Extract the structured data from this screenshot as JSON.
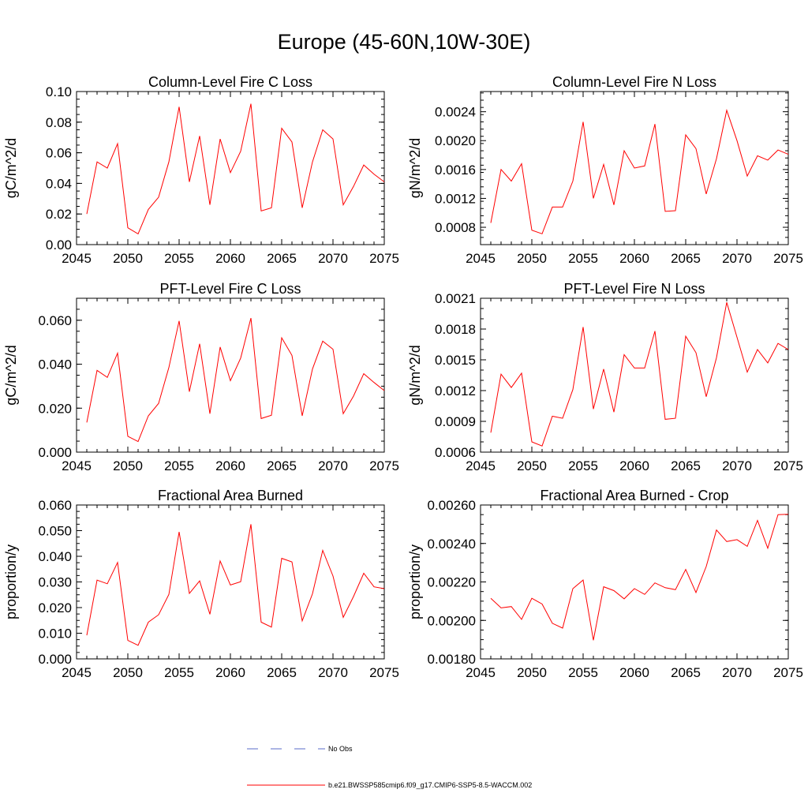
{
  "title": "Europe (45-60N,10W-30E)",
  "chart_data": [
    {
      "type": "line",
      "title": "Column-Level Fire C Loss",
      "ylabel": "gC/m^2/d",
      "xlim": [
        2045,
        2075
      ],
      "ylim": [
        0.0,
        0.1
      ],
      "xticks": [
        2045,
        2050,
        2055,
        2060,
        2065,
        2070,
        2075
      ],
      "xtick_labels": [
        "2045",
        "2050",
        "2055",
        "2060",
        "2065",
        "2070",
        "2075"
      ],
      "yticks": [
        0.0,
        0.02,
        0.04,
        0.06,
        0.08,
        0.1
      ],
      "ytick_labels": [
        "0.00",
        "0.02",
        "0.04",
        "0.06",
        "0.08",
        "0.10"
      ],
      "yminor_step": 0.005,
      "series": [
        {
          "name": "b.e21.BWSSP585cmip6.f09_g17.CMIP6-SSP5-8.5-WACCM.002",
          "color": "#ff0000",
          "x": [
            2046,
            2047,
            2048,
            2049,
            2050,
            2051,
            2052,
            2053,
            2054,
            2055,
            2056,
            2057,
            2058,
            2059,
            2060,
            2061,
            2062,
            2063,
            2064,
            2065,
            2066,
            2067,
            2068,
            2069,
            2070,
            2071,
            2072,
            2073,
            2074,
            2075
          ],
          "values": [
            0.02,
            0.054,
            0.05,
            0.066,
            0.011,
            0.007,
            0.023,
            0.031,
            0.054,
            0.09,
            0.041,
            0.071,
            0.026,
            0.069,
            0.047,
            0.061,
            0.092,
            0.022,
            0.024,
            0.076,
            0.067,
            0.024,
            0.054,
            0.075,
            0.069,
            0.026,
            0.038,
            0.052,
            0.046,
            0.041
          ]
        }
      ]
    },
    {
      "type": "line",
      "title": "Column-Level Fire N Loss",
      "ylabel": "gN/m^2/d",
      "xlim": [
        2045,
        2075
      ],
      "ylim": [
        0.00056,
        0.00268
      ],
      "xticks": [
        2045,
        2050,
        2055,
        2060,
        2065,
        2070,
        2075
      ],
      "xtick_labels": [
        "2045",
        "2050",
        "2055",
        "2060",
        "2065",
        "2070",
        "2075"
      ],
      "yticks": [
        0.0008,
        0.0012,
        0.0016,
        0.002,
        0.0024
      ],
      "ytick_labels": [
        "0.0008",
        "0.0012",
        "0.0016",
        "0.0020",
        "0.0024"
      ],
      "yminor_step": 0.0001,
      "series": [
        {
          "name": "b.e21.BWSSP585cmip6.f09_g17.CMIP6-SSP5-8.5-WACCM.002",
          "color": "#ff0000",
          "x": [
            2046,
            2047,
            2048,
            2049,
            2050,
            2051,
            2052,
            2053,
            2054,
            2055,
            2056,
            2057,
            2058,
            2059,
            2060,
            2061,
            2062,
            2063,
            2064,
            2065,
            2066,
            2067,
            2068,
            2069,
            2070,
            2071,
            2072,
            2073,
            2074,
            2075
          ],
          "values": [
            0.00086,
            0.0016,
            0.00144,
            0.00168,
            0.00076,
            0.00071,
            0.00108,
            0.00108,
            0.00144,
            0.00226,
            0.0012,
            0.00167,
            0.00111,
            0.00186,
            0.00162,
            0.00165,
            0.00223,
            0.00102,
            0.00103,
            0.00208,
            0.00189,
            0.00126,
            0.00175,
            0.00242,
            0.002,
            0.00151,
            0.00179,
            0.00173,
            0.00187,
            0.00181
          ]
        }
      ]
    },
    {
      "type": "line",
      "title": "PFT-Level Fire C Loss",
      "ylabel": "gC/m^2/d",
      "xlim": [
        2045,
        2075
      ],
      "ylim": [
        0.0,
        0.07
      ],
      "xticks": [
        2045,
        2050,
        2055,
        2060,
        2065,
        2070,
        2075
      ],
      "xtick_labels": [
        "2045",
        "2050",
        "2055",
        "2060",
        "2065",
        "2070",
        "2075"
      ],
      "yticks": [
        0.0,
        0.02,
        0.04,
        0.06
      ],
      "ytick_labels": [
        "0.000",
        "0.020",
        "0.040",
        "0.060"
      ],
      "yminor_step": 0.005,
      "series": [
        {
          "name": "b.e21.BWSSP585cmip6.f09_g17.CMIP6-SSP5-8.5-WACCM.002",
          "color": "#ff0000",
          "x": [
            2046,
            2047,
            2048,
            2049,
            2050,
            2051,
            2052,
            2053,
            2054,
            2055,
            2056,
            2057,
            2058,
            2059,
            2060,
            2061,
            2062,
            2063,
            2064,
            2065,
            2066,
            2067,
            2068,
            2069,
            2070,
            2071,
            2072,
            2073,
            2074,
            2075
          ],
          "values": [
            0.0135,
            0.0372,
            0.034,
            0.045,
            0.0072,
            0.0048,
            0.0165,
            0.0222,
            0.0385,
            0.0597,
            0.0275,
            0.0493,
            0.0175,
            0.0478,
            0.0325,
            0.0428,
            0.061,
            0.0153,
            0.0168,
            0.052,
            0.044,
            0.0165,
            0.0378,
            0.0505,
            0.0468,
            0.0175,
            0.0255,
            0.0357,
            0.0317,
            0.028
          ]
        }
      ]
    },
    {
      "type": "line",
      "title": "PFT-Level Fire N Loss",
      "ylabel": "gN/m^2/d",
      "xlim": [
        2045,
        2075
      ],
      "ylim": [
        0.0006,
        0.0021
      ],
      "xticks": [
        2045,
        2050,
        2055,
        2060,
        2065,
        2070,
        2075
      ],
      "xtick_labels": [
        "2045",
        "2050",
        "2055",
        "2060",
        "2065",
        "2070",
        "2075"
      ],
      "yticks": [
        0.0006,
        0.0009,
        0.0012,
        0.0015,
        0.0018,
        0.0021
      ],
      "ytick_labels": [
        "0.0006",
        "0.0009",
        "0.0012",
        "0.0015",
        "0.0018",
        "0.0021"
      ],
      "yminor_step": 0.0001,
      "series": [
        {
          "name": "b.e21.BWSSP585cmip6.f09_g17.CMIP6-SSP5-8.5-WACCM.002",
          "color": "#ff0000",
          "x": [
            2046,
            2047,
            2048,
            2049,
            2050,
            2051,
            2052,
            2053,
            2054,
            2055,
            2056,
            2057,
            2058,
            2059,
            2060,
            2061,
            2062,
            2063,
            2064,
            2065,
            2066,
            2067,
            2068,
            2069,
            2070,
            2071,
            2072,
            2073,
            2074,
            2075
          ],
          "values": [
            0.00079,
            0.00136,
            0.00123,
            0.00137,
            0.0007,
            0.00066,
            0.00095,
            0.00093,
            0.00121,
            0.00182,
            0.00102,
            0.00141,
            0.00099,
            0.00155,
            0.00142,
            0.00142,
            0.00178,
            0.00092,
            0.00093,
            0.00173,
            0.00157,
            0.00114,
            0.00152,
            0.00206,
            0.00172,
            0.00138,
            0.0016,
            0.00147,
            0.00166,
            0.0016
          ]
        }
      ]
    },
    {
      "type": "line",
      "title": "Fractional Area Burned",
      "ylabel": "proportion/y",
      "xlim": [
        2045,
        2075
      ],
      "ylim": [
        0.0,
        0.06
      ],
      "xticks": [
        2045,
        2050,
        2055,
        2060,
        2065,
        2070,
        2075
      ],
      "xtick_labels": [
        "2045",
        "2050",
        "2055",
        "2060",
        "2065",
        "2070",
        "2075"
      ],
      "yticks": [
        0.0,
        0.01,
        0.02,
        0.03,
        0.04,
        0.05,
        0.06
      ],
      "ytick_labels": [
        "0.000",
        "0.010",
        "0.020",
        "0.030",
        "0.040",
        "0.050",
        "0.060"
      ],
      "yminor_step": 0.0025,
      "series": [
        {
          "name": "b.e21.BWSSP585cmip6.f09_g17.CMIP6-SSP5-8.5-WACCM.002",
          "color": "#ff0000",
          "x": [
            2046,
            2047,
            2048,
            2049,
            2050,
            2051,
            2052,
            2053,
            2054,
            2055,
            2056,
            2057,
            2058,
            2059,
            2060,
            2061,
            2062,
            2063,
            2064,
            2065,
            2066,
            2067,
            2068,
            2069,
            2070,
            2071,
            2072,
            2073,
            2074,
            2075
          ],
          "values": [
            0.0092,
            0.0307,
            0.0293,
            0.0376,
            0.0072,
            0.0053,
            0.0143,
            0.0172,
            0.0251,
            0.0495,
            0.0255,
            0.0304,
            0.0174,
            0.0382,
            0.0288,
            0.0301,
            0.0525,
            0.0143,
            0.0124,
            0.0392,
            0.0378,
            0.0148,
            0.0254,
            0.0423,
            0.0323,
            0.0162,
            0.0243,
            0.0334,
            0.0281,
            0.0274
          ]
        }
      ]
    },
    {
      "type": "line",
      "title": "Fractional Area Burned - Crop",
      "ylabel": "proportion/y",
      "xlim": [
        2045,
        2075
      ],
      "ylim": [
        0.0018,
        0.0026
      ],
      "xticks": [
        2045,
        2050,
        2055,
        2060,
        2065,
        2070,
        2075
      ],
      "xtick_labels": [
        "2045",
        "2050",
        "2055",
        "2060",
        "2065",
        "2070",
        "2075"
      ],
      "yticks": [
        0.0018,
        0.002,
        0.0022,
        0.0024,
        0.0026
      ],
      "ytick_labels": [
        "0.00180",
        "0.00200",
        "0.00220",
        "0.00240",
        "0.00260"
      ],
      "yminor_step": 5e-05,
      "series": [
        {
          "name": "b.e21.BWSSP585cmip6.f09_g17.CMIP6-SSP5-8.5-WACCM.002",
          "color": "#ff0000",
          "x": [
            2046,
            2047,
            2048,
            2049,
            2050,
            2051,
            2052,
            2053,
            2054,
            2055,
            2056,
            2057,
            2058,
            2059,
            2060,
            2061,
            2062,
            2063,
            2064,
            2065,
            2066,
            2067,
            2068,
            2069,
            2070,
            2071,
            2072,
            2073,
            2074,
            2075
          ],
          "values": [
            0.002115,
            0.002065,
            0.002072,
            0.002005,
            0.002115,
            0.002085,
            0.001985,
            0.00196,
            0.002165,
            0.00221,
            0.001897,
            0.002175,
            0.002155,
            0.002112,
            0.002165,
            0.002135,
            0.002195,
            0.00217,
            0.00216,
            0.002265,
            0.002145,
            0.00228,
            0.00247,
            0.00241,
            0.00242,
            0.002385,
            0.00252,
            0.002375,
            0.00255,
            0.002552
          ]
        }
      ]
    }
  ],
  "legend": [
    {
      "label": "No Obs",
      "color": "#5a6bc8",
      "dashed": true
    },
    {
      "label": "b.e21.BWSSP585cmip6.f09_g17.CMIP6-SSP5-8.5-WACCM.002",
      "color": "#ff0000",
      "dashed": false
    }
  ]
}
